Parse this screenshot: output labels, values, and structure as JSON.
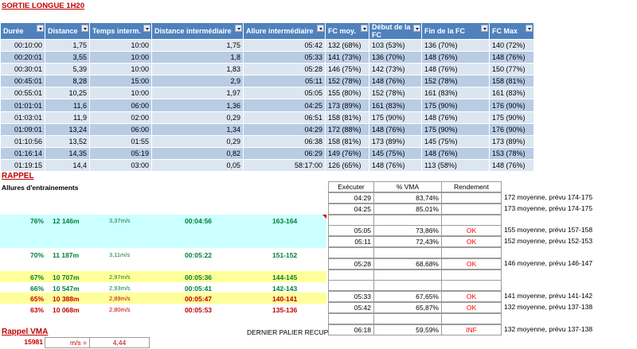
{
  "title": "SORTIE LONGUE 1H20",
  "table": {
    "headers": [
      "Durée",
      "Distance",
      "Temps interm.",
      "Distance intermédiaire",
      "Allure intermédiaire",
      "FC moy.",
      "Début de la FC",
      "Fin de la FC",
      "FC Max"
    ],
    "rows": [
      [
        "00:10:00",
        "1,75",
        "10:00",
        "1,75",
        "05:42",
        "132 (68%)",
        "103 (53%)",
        "136 (70%)",
        "140 (72%)"
      ],
      [
        "00:20:01",
        "3,55",
        "10:00",
        "1,8",
        "05:33",
        "141 (73%)",
        "136 (70%)",
        "148 (76%)",
        "148 (76%)"
      ],
      [
        "00:30:01",
        "5,39",
        "10:00",
        "1,83",
        "05:28",
        "146 (75%)",
        "142 (73%)",
        "148 (76%)",
        "150 (77%)"
      ],
      [
        "00:45:01",
        "8,28",
        "15:00",
        "2,9",
        "05:11",
        "152 (78%)",
        "148 (76%)",
        "152 (78%)",
        "158 (81%)"
      ],
      [
        "00:55:01",
        "10,25",
        "10:00",
        "1,97",
        "05:05",
        "155 (80%)",
        "152 (78%)",
        "161 (83%)",
        "161 (83%)"
      ],
      [
        "01:01:01",
        "11,6",
        "06:00",
        "1,36",
        "04:25",
        "173 (89%)",
        "161 (83%)",
        "175 (90%)",
        "176 (90%)"
      ],
      [
        "01:03:01",
        "11,9",
        "02:00",
        "0,29",
        "06:51",
        "158 (81%)",
        "175 (90%)",
        "148 (76%)",
        "175 (90%)"
      ],
      [
        "01:09:01",
        "13,24",
        "06:00",
        "1,34",
        "04:29",
        "172 (88%)",
        "148 (76%)",
        "175 (90%)",
        "176 (90%)"
      ],
      [
        "01:10:56",
        "13,52",
        "01:55",
        "0,29",
        "06:38",
        "158 (81%)",
        "173 (89%)",
        "145 (75%)",
        "173 (89%)"
      ],
      [
        "01:16:14",
        "14,35",
        "05:19",
        "0,82",
        "06:29",
        "149 (76%)",
        "145 (75%)",
        "148 (76%)",
        "153 (78%)"
      ],
      [
        "01:19:15",
        "14,4",
        "03:00",
        "0,05",
        "58:17:00",
        "126 (65%)",
        "148 (76%)",
        "113 (58%)",
        "148 (76%)"
      ]
    ]
  },
  "rappel": {
    "title": "RAPPEL",
    "subtitle": "Allures d'entrainements",
    "headers": [
      "Exécuter",
      "% VMA",
      "Rendement"
    ],
    "rows": [
      {
        "exec": "04:29",
        "vma": "83,74%",
        "rend": "",
        "note": "172 moyenne, prévu 174-175"
      },
      {
        "exec": "04:25",
        "vma": "85,01%",
        "rend": "",
        "note": "173 moyenne, prévu 174-175"
      },
      {
        "exec": "05:05",
        "vma": "73,86%",
        "rend": "OK",
        "note": "155 moyenne, prévu 157-158"
      },
      {
        "exec": "05:11",
        "vma": "72,43%",
        "rend": "OK",
        "note": "152 moyenne, prévu 152-153"
      },
      {
        "exec": "05:28",
        "vma": "68,68%",
        "rend": "OK",
        "note": "146 moyenne, prévu 146-147"
      },
      {
        "exec": "05:33",
        "vma": "67,65%",
        "rend": "OK",
        "note": "141 moyenne, prévu 141-142"
      },
      {
        "exec": "05:42",
        "vma": "65,87%",
        "rend": "OK",
        "note": "132 moyenne, prévu 137-138"
      },
      {
        "exec": "06:18",
        "vma": "59,59%",
        "rend": "INF",
        "note": "132 moyenne, prévu 137-138"
      }
    ],
    "levels": [
      {
        "pct": "76%",
        "dist": "12 146m",
        "speed": "3,37m/s",
        "time": "00:04:56",
        "fc": "163-164"
      },
      {
        "pct": "70%",
        "dist": "11 187m",
        "speed": "3,11m/s",
        "time": "00:05:22",
        "fc": "151-152"
      },
      {
        "pct": "67%",
        "dist": "10 707m",
        "speed": "2,97m/s",
        "time": "00:05:36",
        "fc": "144-145"
      },
      {
        "pct": "66%",
        "dist": "10 547m",
        "speed": "2,93m/s",
        "time": "00:05:41",
        "fc": "142-143"
      },
      {
        "pct": "65%",
        "dist": "10 388m",
        "speed": "2,89m/s",
        "time": "00:05:47",
        "fc": "140-141"
      },
      {
        "pct": "63%",
        "dist": "10 068m",
        "speed": "2,80m/s",
        "time": "00:05:53",
        "fc": "135-136"
      }
    ],
    "dernier": "DERNIER PALIER RECUP"
  },
  "vma": {
    "title": "Rappel VMA",
    "value": "15981",
    "unit": "m/s =",
    "speed": "4,44"
  },
  "colors": {
    "header": "#4f81bd",
    "row_light": "#dce6f1",
    "row_dark": "#b8cce4",
    "cyan": "#ccffff",
    "yellow": "#ffff99",
    "red_text": "#c00000",
    "green_text": "#00803a"
  }
}
